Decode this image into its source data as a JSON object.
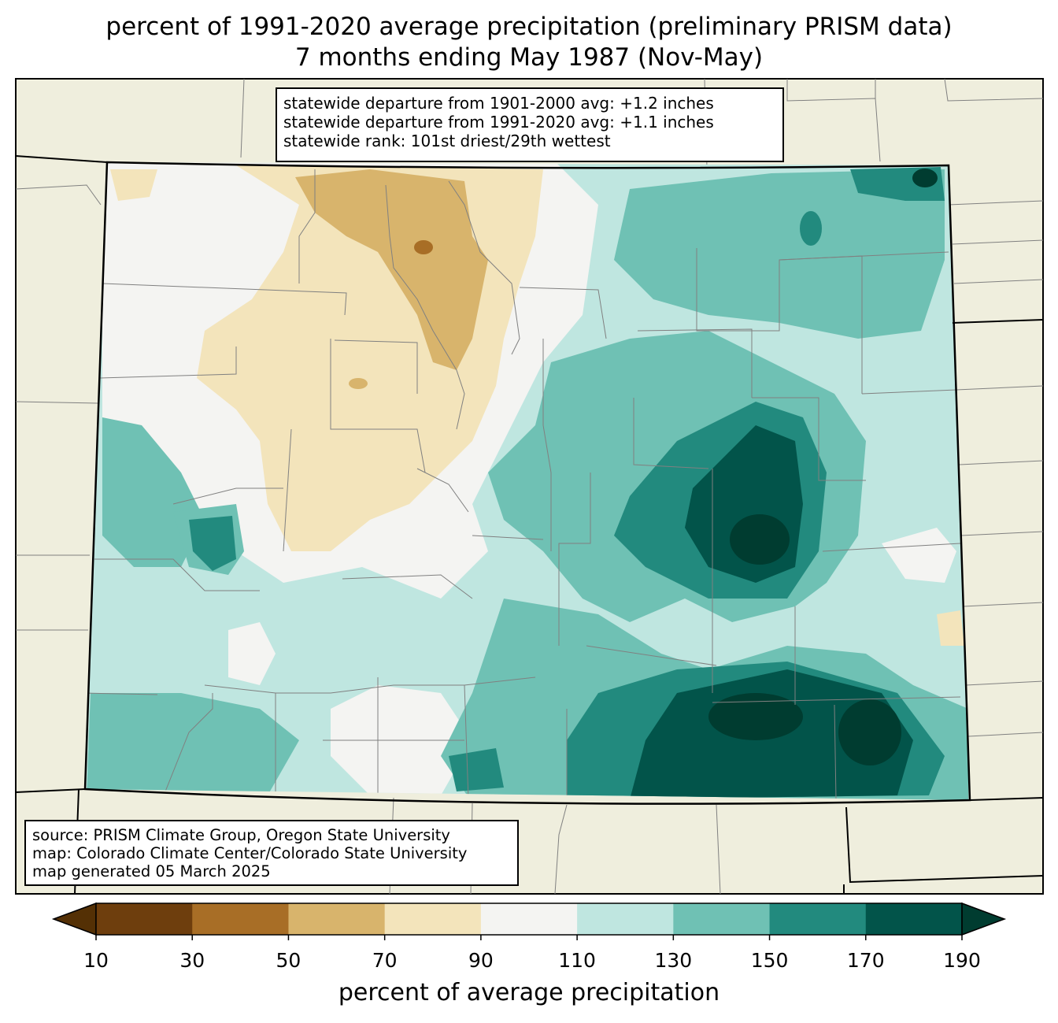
{
  "title": {
    "line1": "percent of 1991-2020 average precipitation (preliminary PRISM data)",
    "line2": "7 months ending May 1987 (Nov-May)"
  },
  "stats": {
    "line1": "statewide departure from 1901-2000 avg: +1.2 inches",
    "line2": "statewide departure from 1991-2020 avg: +1.1 inches",
    "line3": "statewide rank: 101st driest/29th wettest"
  },
  "source": {
    "line1": "source: PRISM Climate Group, Oregon State University",
    "line2": "map: Colorado Climate Center/Colorado State University",
    "line3": "map generated 05 March 2025"
  },
  "colorbar": {
    "label": "percent of average precipitation",
    "ticks": [
      "10",
      "30",
      "50",
      "70",
      "90",
      "110",
      "130",
      "150",
      "170",
      "190"
    ],
    "bins": [
      {
        "range": "10-30",
        "color": "#6e3e0d"
      },
      {
        "range": "30-50",
        "color": "#a86e26"
      },
      {
        "range": "50-70",
        "color": "#d8b46c"
      },
      {
        "range": "70-90",
        "color": "#f3e4bb"
      },
      {
        "range": "90-110",
        "color": "#f4f4f2"
      },
      {
        "range": "110-130",
        "color": "#bfe6e0"
      },
      {
        "range": "130-150",
        "color": "#6fc1b4"
      },
      {
        "range": "150-170",
        "color": "#228a7e"
      },
      {
        "range": "170-190",
        "color": "#02544a"
      }
    ],
    "under_color": "#543005",
    "over_color": "#003c30"
  },
  "colors": {
    "land": "#efeedd",
    "state_border": "#000000",
    "county_border": "#808080"
  }
}
